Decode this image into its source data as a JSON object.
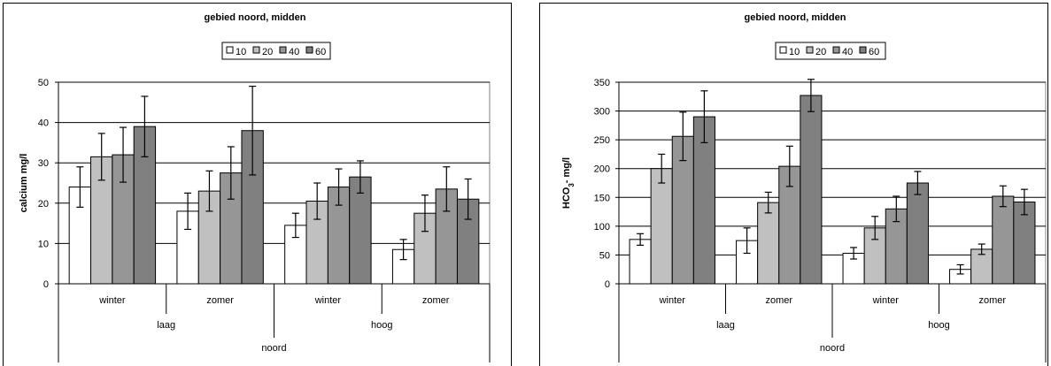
{
  "chart_data": [
    {
      "type": "bar",
      "title": "gebied noord, midden",
      "ylabel": "calcium mg/l",
      "ylabel_sub": "",
      "ylabel_rest": "",
      "ylim": [
        0,
        50
      ],
      "yticks": [
        0,
        10,
        20,
        30,
        40,
        50
      ],
      "grid": true,
      "legend_position": "top-center",
      "categories": [
        "winter",
        "zomer",
        "winter",
        "zomer"
      ],
      "level2": [
        {
          "label": "laag",
          "span": 2
        },
        {
          "label": "hoog",
          "span": 2
        }
      ],
      "level3": [
        {
          "label": "noord",
          "span": 4
        }
      ],
      "series": [
        {
          "name": "10",
          "color": "#ffffff",
          "values": [
            24,
            18,
            14.5,
            8.5
          ],
          "err": [
            5,
            4.5,
            3,
            2.5
          ]
        },
        {
          "name": "20",
          "color": "#c0c0c0",
          "values": [
            31.5,
            23,
            20.5,
            17.5
          ],
          "err": [
            5.8,
            5,
            4.5,
            4.5
          ]
        },
        {
          "name": "40",
          "color": "#969696",
          "values": [
            32,
            27.5,
            24,
            23.5
          ],
          "err": [
            6.8,
            6.5,
            4.5,
            5.5
          ]
        },
        {
          "name": "60",
          "color": "#808080",
          "values": [
            39,
            38,
            26.5,
            21
          ],
          "err": [
            7.5,
            11,
            4,
            5
          ]
        }
      ]
    },
    {
      "type": "bar",
      "title": "gebied noord, midden",
      "ylabel": "HCO",
      "ylabel_sub": "3",
      "ylabel_rest": "- mg/l",
      "ylim": [
        0,
        350
      ],
      "yticks": [
        0,
        50,
        100,
        150,
        200,
        250,
        300,
        350
      ],
      "grid": true,
      "legend_position": "top-center",
      "categories": [
        "winter",
        "zomer",
        "winter",
        "zomer"
      ],
      "level2": [
        {
          "label": "laag",
          "span": 2
        },
        {
          "label": "hoog",
          "span": 2
        }
      ],
      "level3": [
        {
          "label": "noord",
          "span": 4
        }
      ],
      "series": [
        {
          "name": "10",
          "color": "#ffffff",
          "values": [
            77,
            75,
            53,
            25
          ],
          "err": [
            10,
            22,
            10,
            8
          ]
        },
        {
          "name": "20",
          "color": "#c0c0c0",
          "values": [
            200,
            141,
            97,
            60
          ],
          "err": [
            25,
            18,
            20,
            9
          ]
        },
        {
          "name": "40",
          "color": "#969696",
          "values": [
            256,
            204,
            130,
            152
          ],
          "err": [
            42,
            35,
            22,
            18
          ]
        },
        {
          "name": "60",
          "color": "#808080",
          "values": [
            290,
            327,
            175,
            142
          ],
          "err": [
            45,
            28,
            20,
            22
          ]
        }
      ]
    }
  ]
}
